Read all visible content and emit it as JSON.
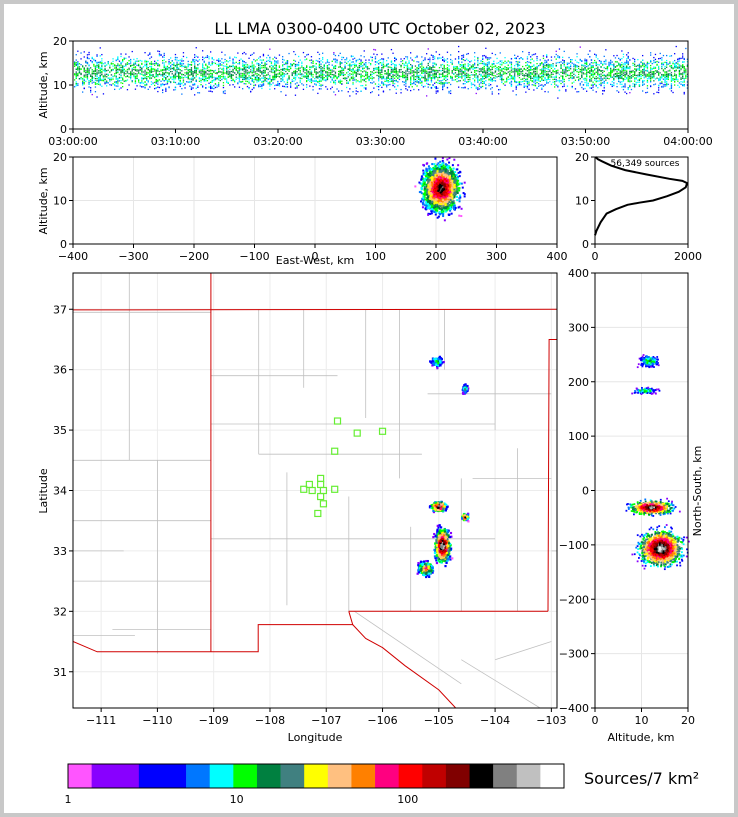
{
  "title": "LL LMA 0300-0400 UTC October 02, 2023",
  "colorbar": {
    "label": "Sources/7 km²",
    "tick_labels": [
      "1",
      "10",
      "100"
    ],
    "colors": [
      "#ff55ff",
      "#8800ff",
      "#8800ff",
      "#0000ff",
      "#0000ff",
      "#0077ff",
      "#00ffff",
      "#00ff00",
      "#008040",
      "#408080",
      "#ffff00",
      "#ffc080",
      "#ff8000",
      "#ff0080",
      "#ff0000",
      "#c00000",
      "#800000",
      "#000000",
      "#808080",
      "#c0c0c0",
      "#ffffff"
    ]
  },
  "chart_data": [
    {
      "name": "altitude-time",
      "type": "heatmap",
      "ylabel": "Altitude, km",
      "xlim": [
        "03:00:00",
        "04:00:00"
      ],
      "ylim": [
        0,
        20
      ],
      "xtick_labels": [
        "03:00:00",
        "03:10:00",
        "03:20:00",
        "03:30:00",
        "03:40:00",
        "03:50:00",
        "04:00:00"
      ],
      "ytick_labels": [
        "0",
        "10",
        "20"
      ]
    },
    {
      "name": "altitude-east-west",
      "type": "heatmap",
      "xlabel": "East-West, km",
      "ylabel": "Altitude, km",
      "xlim": [
        -400,
        400
      ],
      "ylim": [
        0,
        20
      ],
      "xtick_labels": [
        "−400",
        "−300",
        "−200",
        "−100",
        "0",
        "100",
        "200",
        "300",
        "400"
      ],
      "ytick_labels": [
        "0",
        "10",
        "20"
      ],
      "core": {
        "ew_km": 207,
        "alt_km": 13
      }
    },
    {
      "name": "altitude-histogram",
      "type": "line",
      "annotation": "56,349 sources",
      "xlim": [
        0,
        2000
      ],
      "ylim": [
        0,
        20
      ],
      "xtick_labels": [
        "0",
        "2000"
      ],
      "ytick_labels": [
        "0",
        "10",
        "20"
      ],
      "x": [
        0,
        30,
        120,
        250,
        450,
        700,
        950,
        1250,
        1550,
        1800,
        1950,
        1980,
        1880,
        1600,
        1100,
        650,
        350,
        150,
        60,
        10
      ],
      "y": [
        2,
        3,
        5,
        7,
        8,
        9,
        9.5,
        10,
        11,
        12,
        13,
        14,
        14.5,
        15,
        16,
        17,
        18,
        19,
        19.5,
        20
      ]
    },
    {
      "name": "plan-view-map",
      "type": "heatmap",
      "xlabel": "Longitude",
      "ylabel": "Latitude",
      "xlim": [
        -111.5,
        -102.9
      ],
      "ylim": [
        30.4,
        37.6
      ],
      "xtick_labels": [
        "−111",
        "−110",
        "−109",
        "−108",
        "−107",
        "−106",
        "−105",
        "−104",
        "−103"
      ],
      "ytick_labels": [
        "31",
        "32",
        "33",
        "34",
        "35",
        "36",
        "37"
      ],
      "stations": [
        {
          "lon": -106.8,
          "lat": 35.15
        },
        {
          "lon": -106.45,
          "lat": 34.95
        },
        {
          "lon": -106.0,
          "lat": 34.98
        },
        {
          "lon": -106.85,
          "lat": 34.65
        },
        {
          "lon": -107.1,
          "lat": 34.2
        },
        {
          "lon": -107.3,
          "lat": 34.1
        },
        {
          "lon": -107.1,
          "lat": 34.1
        },
        {
          "lon": -107.4,
          "lat": 34.02
        },
        {
          "lon": -107.25,
          "lat": 34.0
        },
        {
          "lon": -107.05,
          "lat": 34.0
        },
        {
          "lon": -106.85,
          "lat": 34.02
        },
        {
          "lon": -107.1,
          "lat": 33.9
        },
        {
          "lon": -107.05,
          "lat": 33.78
        },
        {
          "lon": -107.15,
          "lat": 33.62
        }
      ]
    },
    {
      "name": "north-south-altitude",
      "type": "heatmap",
      "xlabel": "Altitude, km",
      "ylabel": "North-South, km",
      "xlim": [
        0,
        20
      ],
      "ylim": [
        -400,
        400
      ],
      "xtick_labels": [
        "0",
        "10",
        "20"
      ],
      "ytick_labels": [
        "−400",
        "−300",
        "−200",
        "−100",
        "0",
        "100",
        "200",
        "300",
        "400"
      ]
    }
  ]
}
